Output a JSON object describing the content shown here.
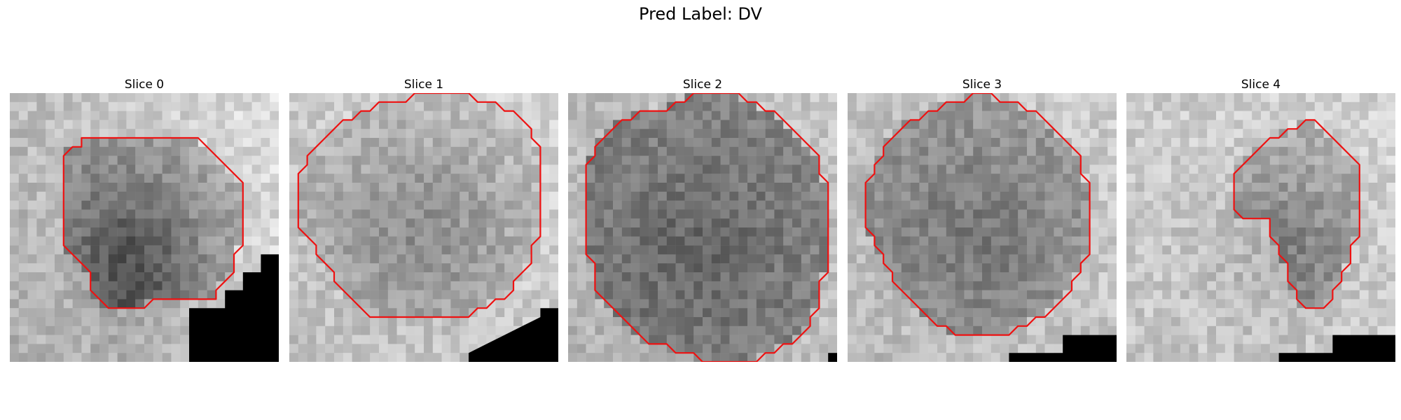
{
  "figure": {
    "title": "Pred Label: DV"
  },
  "colors": {
    "contour": "#ee1111",
    "mask": "#000000"
  },
  "panels": [
    {
      "title": "Slice 0",
      "seed": 11,
      "base": 158,
      "bg": 200,
      "dark": 75,
      "grad": [
        35,
        -12
      ],
      "cluster": [
        0.45,
        0.65,
        0.25,
        0.35
      ],
      "mask": [
        [
          30,
          14
        ],
        [
          30,
          18
        ],
        [
          28,
          18
        ],
        [
          28,
          20
        ],
        [
          26,
          20
        ],
        [
          26,
          22
        ],
        [
          24,
          22
        ],
        [
          24,
          24
        ],
        [
          20,
          24
        ],
        [
          20,
          30
        ],
        [
          30,
          30
        ]
      ],
      "contour": [
        [
          8,
          5
        ],
        [
          21,
          5
        ],
        [
          25,
          9
        ],
        [
          26,
          10
        ],
        [
          26,
          17
        ],
        [
          25,
          18
        ],
        [
          25,
          20
        ],
        [
          24,
          21
        ],
        [
          23,
          22
        ],
        [
          23,
          23
        ],
        [
          16,
          23
        ],
        [
          15,
          24
        ],
        [
          11,
          24
        ],
        [
          10,
          23
        ],
        [
          9,
          22
        ],
        [
          9,
          20
        ],
        [
          8,
          19
        ],
        [
          7,
          18
        ],
        [
          6,
          17
        ],
        [
          6,
          7
        ],
        [
          7,
          6
        ],
        [
          8,
          6
        ]
      ]
    },
    {
      "title": "Slice 1",
      "seed": 23,
      "base": 188,
      "bg": 205,
      "dark": 45,
      "grad": [
        14,
        -10
      ],
      "cluster": [
        0.5,
        0.5,
        0.35,
        0.35
      ],
      "mask": [
        [
          30,
          22
        ],
        [
          30,
          24
        ],
        [
          28,
          24
        ],
        [
          28,
          25
        ],
        [
          26,
          26
        ],
        [
          24,
          27
        ],
        [
          22,
          28
        ],
        [
          20,
          29
        ],
        [
          20,
          30
        ],
        [
          30,
          30
        ]
      ],
      "contour": [
        [
          11,
          1
        ],
        [
          13,
          1
        ],
        [
          14,
          0
        ],
        [
          20,
          0
        ],
        [
          21,
          1
        ],
        [
          23,
          1
        ],
        [
          24,
          2
        ],
        [
          25,
          2
        ],
        [
          26,
          3
        ],
        [
          27,
          4
        ],
        [
          27,
          5
        ],
        [
          28,
          6
        ],
        [
          28,
          16
        ],
        [
          27,
          17
        ],
        [
          27,
          19
        ],
        [
          26,
          20
        ],
        [
          25,
          21
        ],
        [
          25,
          22
        ],
        [
          24,
          23
        ],
        [
          23,
          23
        ],
        [
          22,
          24
        ],
        [
          21,
          24
        ],
        [
          20,
          25
        ],
        [
          9,
          25
        ],
        [
          8,
          24
        ],
        [
          7,
          23
        ],
        [
          6,
          22
        ],
        [
          5,
          21
        ],
        [
          5,
          20
        ],
        [
          4,
          19
        ],
        [
          3,
          18
        ],
        [
          3,
          17
        ],
        [
          2,
          16
        ],
        [
          1,
          15
        ],
        [
          1,
          14
        ],
        [
          1,
          11
        ],
        [
          1,
          10
        ],
        [
          1,
          9
        ],
        [
          2,
          8
        ],
        [
          2,
          7
        ],
        [
          3,
          6
        ],
        [
          4,
          5
        ],
        [
          5,
          4
        ],
        [
          6,
          3
        ],
        [
          7,
          3
        ],
        [
          8,
          2
        ],
        [
          9,
          2
        ],
        [
          10,
          1
        ]
      ]
    },
    {
      "title": "Slice 2",
      "seed": 37,
      "base": 128,
      "bg": 190,
      "dark": 25,
      "grad": [
        10,
        -6
      ],
      "cluster": [
        0.5,
        0.55,
        0.3,
        0.3
      ],
      "mask": [
        [
          30,
          29
        ],
        [
          29,
          29
        ],
        [
          29,
          30
        ],
        [
          30,
          30
        ]
      ],
      "contour": [
        [
          10,
          2
        ],
        [
          11,
          2
        ],
        [
          12,
          1
        ],
        [
          13,
          1
        ],
        [
          14,
          0
        ],
        [
          19,
          0
        ],
        [
          20,
          1
        ],
        [
          21,
          1
        ],
        [
          22,
          2
        ],
        [
          23,
          2
        ],
        [
          24,
          3
        ],
        [
          25,
          4
        ],
        [
          26,
          5
        ],
        [
          27,
          6
        ],
        [
          28,
          7
        ],
        [
          28,
          9
        ],
        [
          29,
          10
        ],
        [
          29,
          20
        ],
        [
          28,
          21
        ],
        [
          28,
          24
        ],
        [
          27,
          25
        ],
        [
          27,
          26
        ],
        [
          26,
          27
        ],
        [
          25,
          28
        ],
        [
          24,
          28
        ],
        [
          23,
          29
        ],
        [
          22,
          29
        ],
        [
          21,
          30
        ],
        [
          15,
          30
        ],
        [
          14,
          29
        ],
        [
          12,
          29
        ],
        [
          11,
          28
        ],
        [
          9,
          28
        ],
        [
          8,
          27
        ],
        [
          7,
          26
        ],
        [
          6,
          25
        ],
        [
          5,
          24
        ],
        [
          4,
          23
        ],
        [
          3,
          22
        ],
        [
          3,
          19
        ],
        [
          2,
          18
        ],
        [
          2,
          8
        ],
        [
          3,
          7
        ],
        [
          3,
          6
        ],
        [
          4,
          5
        ],
        [
          5,
          4
        ],
        [
          6,
          3
        ],
        [
          7,
          3
        ],
        [
          8,
          2
        ]
      ]
    },
    {
      "title": "Slice 3",
      "seed": 51,
      "base": 150,
      "bg": 195,
      "dark": 30,
      "grad": [
        14,
        -8
      ],
      "cluster": [
        0.5,
        0.5,
        0.3,
        0.3
      ],
      "mask": [
        [
          30,
          27
        ],
        [
          30,
          30
        ],
        [
          18,
          30
        ],
        [
          18,
          29
        ],
        [
          24,
          29
        ],
        [
          24,
          27
        ]
      ],
      "contour": [
        [
          11,
          1
        ],
        [
          13,
          1
        ],
        [
          14,
          0
        ],
        [
          16,
          0
        ],
        [
          17,
          1
        ],
        [
          19,
          1
        ],
        [
          20,
          2
        ],
        [
          21,
          2
        ],
        [
          22,
          3
        ],
        [
          23,
          4
        ],
        [
          24,
          5
        ],
        [
          25,
          6
        ],
        [
          26,
          7
        ],
        [
          26,
          9
        ],
        [
          27,
          10
        ],
        [
          27,
          18
        ],
        [
          26,
          19
        ],
        [
          26,
          20
        ],
        [
          25,
          21
        ],
        [
          25,
          22
        ],
        [
          24,
          23
        ],
        [
          23,
          24
        ],
        [
          22,
          25
        ],
        [
          21,
          25
        ],
        [
          20,
          26
        ],
        [
          19,
          26
        ],
        [
          18,
          27
        ],
        [
          12,
          27
        ],
        [
          11,
          26
        ],
        [
          10,
          26
        ],
        [
          9,
          25
        ],
        [
          8,
          24
        ],
        [
          7,
          23
        ],
        [
          6,
          22
        ],
        [
          5,
          21
        ],
        [
          5,
          20
        ],
        [
          4,
          19
        ],
        [
          4,
          18
        ],
        [
          3,
          17
        ],
        [
          3,
          16
        ],
        [
          2,
          15
        ],
        [
          2,
          11
        ],
        [
          2,
          10
        ],
        [
          3,
          9
        ],
        [
          3,
          8
        ],
        [
          4,
          7
        ],
        [
          4,
          6
        ],
        [
          5,
          5
        ],
        [
          6,
          4
        ],
        [
          7,
          3
        ],
        [
          8,
          3
        ],
        [
          9,
          2
        ],
        [
          10,
          2
        ]
      ]
    },
    {
      "title": "Slice 4",
      "seed": 67,
      "base": 175,
      "bg": 205,
      "dark": 50,
      "grad": [
        8,
        -6
      ],
      "cluster": [
        0.55,
        0.6,
        0.3,
        0.3
      ],
      "mask": [
        [
          30,
          27
        ],
        [
          30,
          30
        ],
        [
          17,
          30
        ],
        [
          17,
          29
        ],
        [
          23,
          29
        ],
        [
          23,
          27
        ]
      ],
      "contour": [
        [
          20,
          3
        ],
        [
          21,
          3
        ],
        [
          22,
          4
        ],
        [
          23,
          5
        ],
        [
          24,
          6
        ],
        [
          25,
          7
        ],
        [
          26,
          8
        ],
        [
          26,
          16
        ],
        [
          25,
          17
        ],
        [
          25,
          19
        ],
        [
          24,
          20
        ],
        [
          24,
          21
        ],
        [
          23,
          22
        ],
        [
          23,
          23
        ],
        [
          22,
          24
        ],
        [
          20,
          24
        ],
        [
          19,
          23
        ],
        [
          19,
          22
        ],
        [
          18,
          21
        ],
        [
          18,
          19
        ],
        [
          17,
          18
        ],
        [
          17,
          17
        ],
        [
          16,
          16
        ],
        [
          16,
          15
        ],
        [
          16,
          14
        ],
        [
          15,
          14
        ],
        [
          13,
          14
        ],
        [
          12,
          13
        ],
        [
          12,
          9
        ],
        [
          13,
          8
        ],
        [
          14,
          7
        ],
        [
          15,
          6
        ],
        [
          16,
          5
        ],
        [
          17,
          5
        ],
        [
          18,
          4
        ],
        [
          19,
          4
        ]
      ]
    }
  ]
}
